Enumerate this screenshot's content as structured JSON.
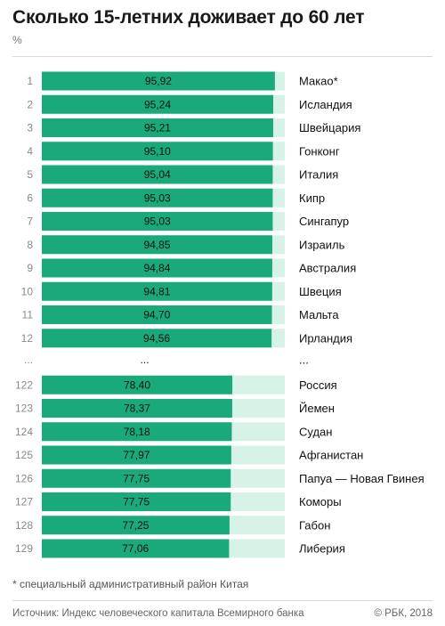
{
  "header": {
    "title": "Сколько 15-летних доживает до 60 лет",
    "unit": "%"
  },
  "footer": {
    "footnote": "* специальный административный район Китая",
    "source": "Источник: Индекс человеческого капитала Всемирного банка",
    "copyright": "© РБК, 2018"
  },
  "colors": {
    "bar": "#1aa97a",
    "track": "#d7f3e8",
    "rank": "#8a8a8a",
    "value": "#111111",
    "label": "#111111"
  },
  "chart_data": {
    "type": "bar",
    "orientation": "horizontal",
    "title": "Сколько 15-летних доживает до 60 лет",
    "ylabel": "%",
    "xlim": [
      0,
      100
    ],
    "ellipsis_row": {
      "rank": "...",
      "value": "...",
      "label": "..."
    },
    "top": [
      {
        "rank": "1",
        "value": 95.92,
        "value_label": "95,92",
        "label": "Макао*"
      },
      {
        "rank": "2",
        "value": 95.24,
        "value_label": "95,24",
        "label": "Исландия"
      },
      {
        "rank": "3",
        "value": 95.21,
        "value_label": "95,21",
        "label": "Швейцария"
      },
      {
        "rank": "4",
        "value": 95.1,
        "value_label": "95,10",
        "label": "Гонконг"
      },
      {
        "rank": "5",
        "value": 95.04,
        "value_label": "95,04",
        "label": "Италия"
      },
      {
        "rank": "6",
        "value": 95.03,
        "value_label": "95,03",
        "label": "Кипр"
      },
      {
        "rank": "7",
        "value": 95.03,
        "value_label": "95,03",
        "label": "Сингапур"
      },
      {
        "rank": "8",
        "value": 94.85,
        "value_label": "94,85",
        "label": "Израиль"
      },
      {
        "rank": "9",
        "value": 94.84,
        "value_label": "94,84",
        "label": "Австралия"
      },
      {
        "rank": "10",
        "value": 94.81,
        "value_label": "94,81",
        "label": "Швеция"
      },
      {
        "rank": "11",
        "value": 94.7,
        "value_label": "94,70",
        "label": "Мальта"
      },
      {
        "rank": "12",
        "value": 94.56,
        "value_label": "94,56",
        "label": "Ирландия"
      }
    ],
    "bottom": [
      {
        "rank": "122",
        "value": 78.4,
        "value_label": "78,40",
        "label": "Россия"
      },
      {
        "rank": "123",
        "value": 78.37,
        "value_label": "78,37",
        "label": "Йемен"
      },
      {
        "rank": "124",
        "value": 78.18,
        "value_label": "78,18",
        "label": "Судан"
      },
      {
        "rank": "125",
        "value": 77.97,
        "value_label": "77,97",
        "label": "Афганистан"
      },
      {
        "rank": "126",
        "value": 77.75,
        "value_label": "77,75",
        "label": "Папуа — Новая Гвинея"
      },
      {
        "rank": "127",
        "value": 77.75,
        "value_label": "77,75",
        "label": "Коморы"
      },
      {
        "rank": "128",
        "value": 77.25,
        "value_label": "77,25",
        "label": "Габон"
      },
      {
        "rank": "129",
        "value": 77.06,
        "value_label": "77,06",
        "label": "Либерия"
      }
    ]
  }
}
